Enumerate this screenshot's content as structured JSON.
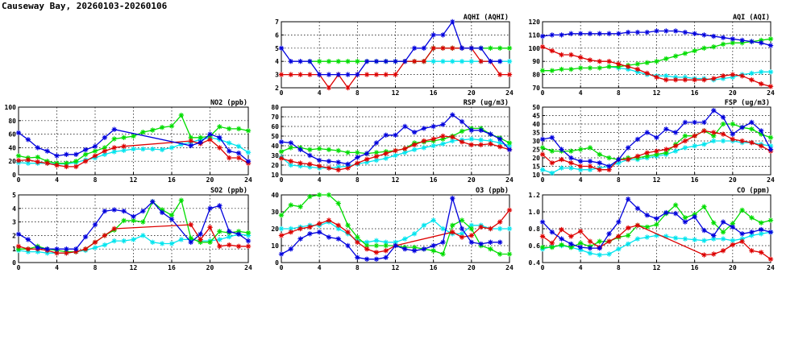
{
  "page": {
    "title": "Causeway Bay, 20260103-20260106"
  },
  "colors": {
    "blue": "#0000dd",
    "red": "#dd0000",
    "green": "#00dd00",
    "cyan": "#00e5ee"
  },
  "chart_data": [
    {
      "type": "line",
      "title": "AQHI (AQHI)",
      "xlim": [
        0,
        24
      ],
      "ylim": [
        2,
        7
      ],
      "grid": true,
      "xticks": [
        "0",
        "4",
        "8",
        "12",
        "16",
        "20",
        "24"
      ],
      "yticks": [
        "2",
        "3",
        "4",
        "5",
        "6",
        "7"
      ],
      "series": [
        {
          "color": "blue",
          "values": [
            5,
            4,
            4,
            4,
            3,
            3,
            3,
            3,
            3,
            4,
            4,
            4,
            4,
            4,
            5,
            5,
            6,
            6,
            7,
            5,
            5,
            5,
            4,
            4,
            null
          ]
        },
        {
          "color": "red",
          "values": [
            3,
            3,
            3,
            3,
            3,
            2,
            3,
            2,
            3,
            3,
            3,
            3,
            3,
            4,
            4,
            4,
            5,
            5,
            5,
            5,
            5,
            4,
            4,
            3,
            3
          ]
        },
        {
          "color": "green",
          "values": [
            null,
            null,
            null,
            4,
            4,
            4,
            4,
            4,
            4,
            4,
            4,
            4,
            4,
            4,
            4,
            4,
            5,
            5,
            5,
            5,
            5,
            5,
            5,
            5,
            5
          ]
        },
        {
          "color": "cyan",
          "values": [
            null,
            null,
            null,
            null,
            null,
            null,
            null,
            null,
            null,
            null,
            null,
            null,
            null,
            4,
            4,
            4,
            4,
            4,
            4,
            4,
            4,
            4,
            4,
            4,
            4
          ]
        }
      ]
    },
    {
      "type": "line",
      "title": "AQI (AQI)",
      "xlim": [
        0,
        24
      ],
      "ylim": [
        70,
        120
      ],
      "grid": true,
      "xticks": [
        "0",
        "4",
        "8",
        "12",
        "16",
        "20",
        "24"
      ],
      "yticks": [
        "70",
        "80",
        "90",
        "100",
        "110",
        "120"
      ],
      "series": [
        {
          "color": "blue",
          "values": [
            109,
            110,
            110,
            111,
            111,
            111,
            111,
            111,
            111,
            112,
            112,
            112,
            113,
            113,
            113,
            112,
            111,
            110,
            109,
            108,
            107,
            106,
            105,
            104,
            102
          ]
        },
        {
          "color": "red",
          "values": [
            101,
            98,
            95,
            95,
            93,
            91,
            90,
            90,
            88,
            86,
            84,
            81,
            78,
            76,
            76,
            76,
            76,
            76,
            77,
            79,
            80,
            79,
            76,
            73,
            71
          ]
        },
        {
          "color": "green",
          "values": [
            83,
            83,
            84,
            84,
            85,
            85,
            85,
            86,
            86,
            87,
            88,
            89,
            90,
            92,
            94,
            96,
            98,
            100,
            101,
            103,
            104,
            104,
            105,
            106,
            107
          ]
        },
        {
          "color": "cyan",
          "values": [
            null,
            null,
            null,
            null,
            null,
            null,
            null,
            86,
            85,
            84,
            82,
            80,
            79,
            79,
            78,
            78,
            77,
            77,
            76,
            77,
            78,
            80,
            81,
            82,
            82
          ]
        }
      ]
    },
    {
      "type": "line",
      "title": "NO2 (ppb)",
      "xlim": [
        0,
        24
      ],
      "ylim": [
        0,
        100
      ],
      "grid": true,
      "xticks": [
        "0",
        "4",
        "8",
        "12",
        "16",
        "20",
        "24"
      ],
      "yticks": [
        "0",
        "20",
        "40",
        "60",
        "80",
        "100"
      ],
      "series": [
        {
          "color": "blue",
          "values": [
            62,
            52,
            40,
            35,
            28,
            30,
            30,
            37,
            42,
            55,
            67,
            null,
            null,
            null,
            null,
            null,
            null,
            null,
            43,
            48,
            60,
            55,
            35,
            32,
            20
          ]
        },
        {
          "color": "red",
          "values": [
            21,
            22,
            19,
            17,
            14,
            12,
            12,
            20,
            28,
            35,
            40,
            42,
            null,
            null,
            null,
            null,
            null,
            null,
            50,
            46,
            52,
            40,
            25,
            25,
            17
          ]
        },
        {
          "color": "green",
          "values": [
            28,
            25,
            26,
            20,
            17,
            17,
            20,
            30,
            35,
            40,
            53,
            55,
            57,
            63,
            66,
            70,
            72,
            88,
            55,
            55,
            57,
            71,
            68,
            68,
            65
          ]
        },
        {
          "color": "cyan",
          "values": [
            18,
            17,
            17,
            17,
            16,
            16,
            18,
            22,
            25,
            30,
            34,
            36,
            38,
            38,
            38,
            37,
            40,
            45,
            48,
            52,
            55,
            52,
            47,
            42,
            33
          ]
        }
      ]
    },
    {
      "type": "line",
      "title": "RSP (ug/m3)",
      "xlim": [
        0,
        24
      ],
      "ylim": [
        10,
        80
      ],
      "grid": true,
      "xticks": [
        "0",
        "4",
        "8",
        "12",
        "16",
        "20",
        "24"
      ],
      "yticks": [
        "10",
        "20",
        "30",
        "40",
        "50",
        "60",
        "70",
        "80"
      ],
      "series": [
        {
          "color": "blue",
          "values": [
            44,
            43,
            36,
            30,
            25,
            24,
            23,
            21,
            28,
            32,
            43,
            51,
            51,
            60,
            54,
            58,
            60,
            62,
            72,
            65,
            56,
            56,
            52,
            47,
            36
          ]
        },
        {
          "color": "red",
          "values": [
            27,
            24,
            22,
            21,
            19,
            17,
            15,
            17,
            22,
            26,
            29,
            32,
            35,
            37,
            41,
            45,
            47,
            50,
            49,
            44,
            41,
            41,
            42,
            39,
            36
          ]
        },
        {
          "color": "green",
          "values": [
            34,
            38,
            38,
            36,
            37,
            36,
            35,
            33,
            33,
            32,
            33,
            34,
            35,
            37,
            43,
            44,
            45,
            47,
            50,
            55,
            58,
            58,
            52,
            48,
            43
          ]
        },
        {
          "color": "cyan",
          "values": [
            28,
            20,
            19,
            18,
            17,
            17,
            18,
            19,
            21,
            23,
            25,
            27,
            30,
            33,
            36,
            38,
            40,
            42,
            45,
            46,
            47,
            46,
            45,
            43,
            40
          ]
        }
      ]
    },
    {
      "type": "line",
      "title": "FSP (ug/m3)",
      "xlim": [
        0,
        24
      ],
      "ylim": [
        10,
        50
      ],
      "grid": true,
      "xticks": [
        "0",
        "4",
        "8",
        "12",
        "16",
        "20",
        "24"
      ],
      "yticks": [
        "10",
        "15",
        "20",
        "25",
        "30",
        "35",
        "40",
        "45",
        "50"
      ],
      "series": [
        {
          "color": "blue",
          "values": [
            31,
            32,
            25,
            20,
            18,
            18,
            17,
            15,
            19,
            26,
            31,
            35,
            32,
            37,
            35,
            41,
            41,
            41,
            48,
            44,
            34,
            38,
            41,
            36,
            25
          ]
        },
        {
          "color": "red",
          "values": [
            22,
            17,
            19,
            17,
            15,
            15,
            13,
            13,
            19,
            19,
            21,
            23,
            24,
            25,
            27,
            30,
            33,
            36,
            35,
            34,
            31,
            30,
            29,
            27,
            24
          ]
        },
        {
          "color": "green",
          "values": [
            26,
            24,
            24,
            24,
            25,
            26,
            22,
            20,
            19,
            20,
            20,
            21,
            22,
            23,
            28,
            33,
            33,
            36,
            33,
            40,
            40,
            38,
            37,
            34,
            32
          ]
        },
        {
          "color": "cyan",
          "values": [
            13,
            11,
            14,
            14,
            13,
            13,
            14,
            15,
            17,
            19,
            19,
            20,
            21,
            22,
            24,
            26,
            27,
            28,
            30,
            30,
            30,
            29,
            29,
            28,
            27
          ]
        }
      ]
    },
    {
      "type": "line",
      "title": "SO2 (ppb)",
      "xlim": [
        0,
        24
      ],
      "ylim": [
        0,
        5
      ],
      "grid": true,
      "xticks": [
        "0",
        "4",
        "8",
        "12",
        "16",
        "20",
        "24"
      ],
      "yticks": [
        "0",
        "1",
        "2",
        "3",
        "4",
        "5"
      ],
      "series": [
        {
          "color": "blue",
          "values": [
            2.1,
            1.7,
            1.1,
            1.0,
            1.0,
            1.0,
            1.0,
            1.9,
            2.8,
            3.8,
            3.9,
            3.8,
            3.4,
            3.8,
            4.5,
            3.7,
            3.2,
            null,
            1.5,
            2.1,
            4.0,
            4.2,
            2.3,
            2.1,
            1.6
          ]
        },
        {
          "color": "red",
          "values": [
            1.2,
            1.0,
            1.0,
            0.9,
            0.7,
            0.7,
            0.8,
            1.0,
            1.5,
            2.0,
            2.5,
            null,
            null,
            null,
            null,
            null,
            null,
            null,
            2.8,
            1.7,
            2.6,
            1.2,
            1.3,
            1.2,
            1.2
          ]
        },
        {
          "color": "green",
          "values": [
            1.0,
            1.0,
            1.2,
            1.0,
            0.9,
            0.8,
            0.8,
            1.0,
            1.5,
            2.0,
            2.4,
            3.1,
            3.1,
            3.0,
            4.5,
            3.9,
            3.5,
            4.6,
            1.8,
            1.5,
            1.5,
            2.3,
            2.2,
            2.3,
            2.2
          ]
        },
        {
          "color": "cyan",
          "values": [
            0.9,
            0.8,
            0.8,
            0.7,
            0.7,
            0.7,
            0.8,
            0.9,
            1.1,
            1.3,
            1.6,
            1.6,
            1.7,
            2.0,
            1.5,
            1.4,
            1.4,
            1.7,
            1.7,
            1.6,
            1.6,
            1.7,
            1.9,
            2.1,
            2.0
          ]
        }
      ]
    },
    {
      "type": "line",
      "title": "O3 (ppb)",
      "xlim": [
        0,
        24
      ],
      "ylim": [
        0,
        40
      ],
      "grid": true,
      "xticks": [
        "0",
        "4",
        "8",
        "12",
        "16",
        "20",
        "24"
      ],
      "yticks": [
        "0",
        "10",
        "20",
        "30",
        "40"
      ],
      "series": [
        {
          "color": "blue",
          "values": [
            5,
            8,
            14,
            17,
            18,
            15,
            14,
            10,
            3,
            2,
            2,
            3,
            10,
            8,
            7,
            8,
            10,
            12,
            38,
            20,
            12,
            11,
            12,
            12,
            null
          ]
        },
        {
          "color": "red",
          "values": [
            16,
            18,
            20,
            21,
            23,
            25,
            22,
            18,
            12,
            8,
            6,
            7,
            10,
            null,
            null,
            null,
            null,
            null,
            18,
            15,
            16,
            21,
            20,
            24,
            31
          ]
        },
        {
          "color": "green",
          "values": [
            28,
            34,
            33,
            39,
            40,
            40,
            35,
            22,
            15,
            10,
            10,
            10,
            10,
            9,
            9,
            8,
            7,
            5,
            22,
            25,
            20,
            10,
            8,
            5,
            5
          ]
        },
        {
          "color": "cyan",
          "values": [
            20,
            20,
            21,
            22,
            22,
            24,
            20,
            17,
            13,
            12,
            13,
            12,
            12,
            14,
            17,
            22,
            25,
            20,
            17,
            17,
            22,
            22,
            20,
            20,
            20
          ]
        }
      ]
    },
    {
      "type": "line",
      "title": "CO (ppm)",
      "xlim": [
        0,
        24
      ],
      "ylim": [
        0.4,
        1.2
      ],
      "grid": true,
      "xticks": [
        "0",
        "4",
        "8",
        "12",
        "16",
        "20",
        "24"
      ],
      "yticks": [
        "0.4",
        "0.6",
        "0.8",
        "1.0",
        "1.2"
      ],
      "series": [
        {
          "color": "blue",
          "values": [
            0.88,
            0.76,
            0.68,
            0.62,
            0.58,
            0.57,
            0.57,
            0.74,
            0.88,
            1.15,
            1.04,
            0.96,
            0.92,
            0.99,
            0.98,
            0.88,
            0.94,
            0.78,
            0.72,
            0.88,
            0.82,
            0.74,
            0.76,
            0.79,
            0.76
          ]
        },
        {
          "color": "red",
          "values": [
            0.71,
            0.63,
            0.79,
            0.71,
            0.77,
            0.65,
            0.58,
            0.65,
            0.71,
            0.81,
            0.84,
            null,
            null,
            null,
            null,
            null,
            null,
            0.49,
            0.5,
            0.54,
            0.61,
            0.65,
            0.54,
            0.52,
            0.44
          ]
        },
        {
          "color": "green",
          "values": [
            0.58,
            0.58,
            0.61,
            0.58,
            0.63,
            0.59,
            0.65,
            0.65,
            0.7,
            0.72,
            0.84,
            0.82,
            0.85,
            0.98,
            1.08,
            0.93,
            0.97,
            1.06,
            0.87,
            0.76,
            0.86,
            1.02,
            0.93,
            0.87,
            0.9
          ]
        },
        {
          "color": "cyan",
          "values": [
            0.56,
            0.59,
            0.6,
            0.58,
            0.55,
            0.51,
            0.49,
            0.5,
            0.56,
            0.62,
            0.68,
            0.7,
            0.72,
            0.71,
            0.69,
            0.68,
            0.67,
            0.66,
            0.68,
            0.68,
            0.66,
            0.68,
            0.72,
            0.74,
            0.76
          ]
        }
      ]
    }
  ]
}
